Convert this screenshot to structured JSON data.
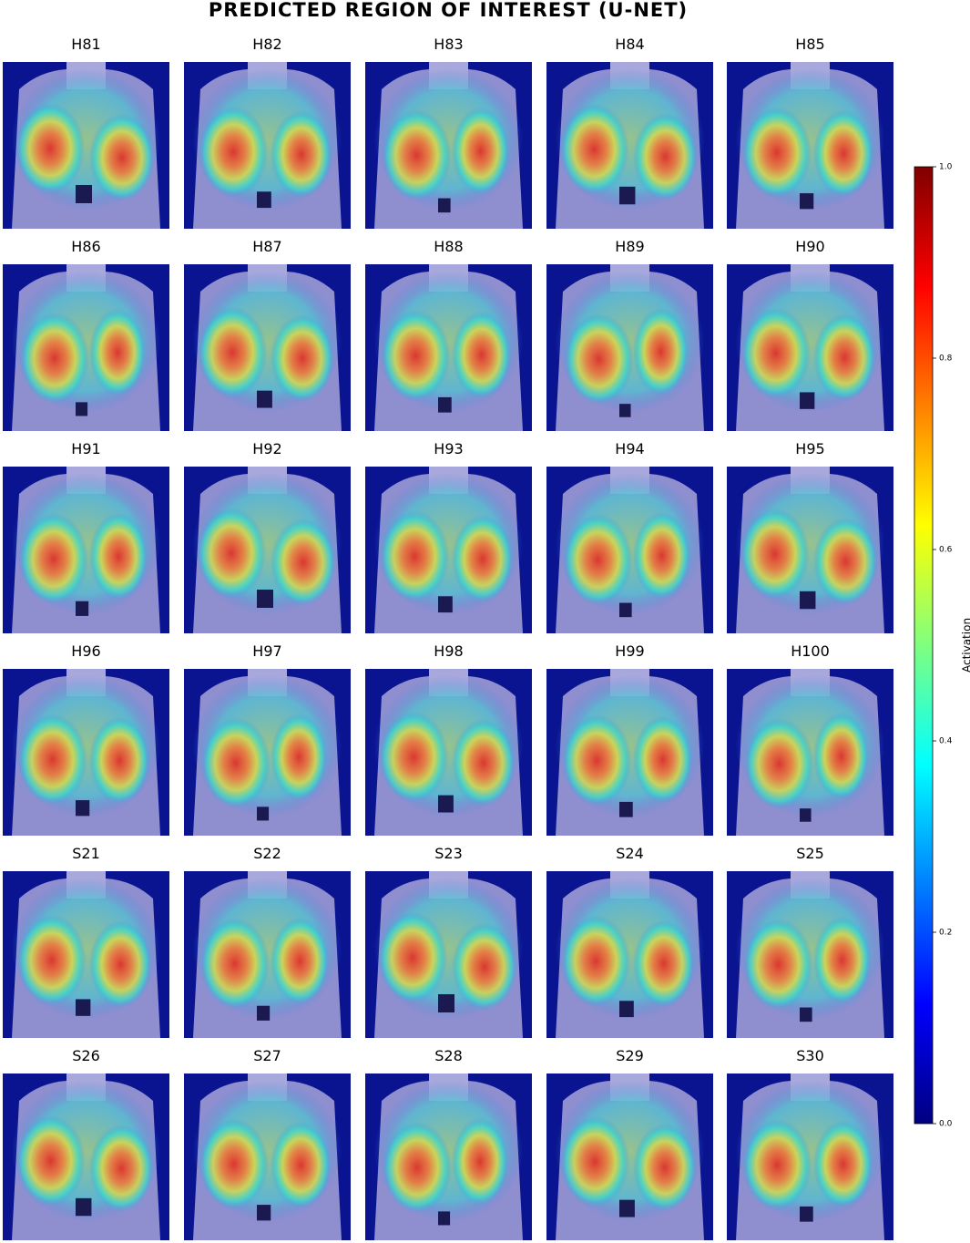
{
  "title": "PREDICTED REGION OF INTEREST (U-NET)",
  "panels": [
    "H81",
    "H82",
    "H83",
    "H84",
    "H85",
    "H86",
    "H87",
    "H88",
    "H89",
    "H90",
    "H91",
    "H92",
    "H93",
    "H94",
    "H95",
    "H96",
    "H97",
    "H98",
    "H99",
    "H100",
    "S21",
    "S22",
    "S23",
    "S24",
    "S25",
    "S26",
    "S27",
    "S28",
    "S29",
    "S30"
  ],
  "colorbar": {
    "label": "Activation",
    "lim": [
      0,
      1
    ],
    "ticks": [
      {
        "value": 0,
        "label": "0.0"
      },
      {
        "value": 0.2,
        "label": "0.2"
      },
      {
        "value": 0.4,
        "label": "0.4"
      },
      {
        "value": 0.6,
        "label": "0.6"
      },
      {
        "value": 0.8,
        "label": "0.8"
      },
      {
        "value": 1,
        "label": "1.0"
      }
    ]
  }
}
